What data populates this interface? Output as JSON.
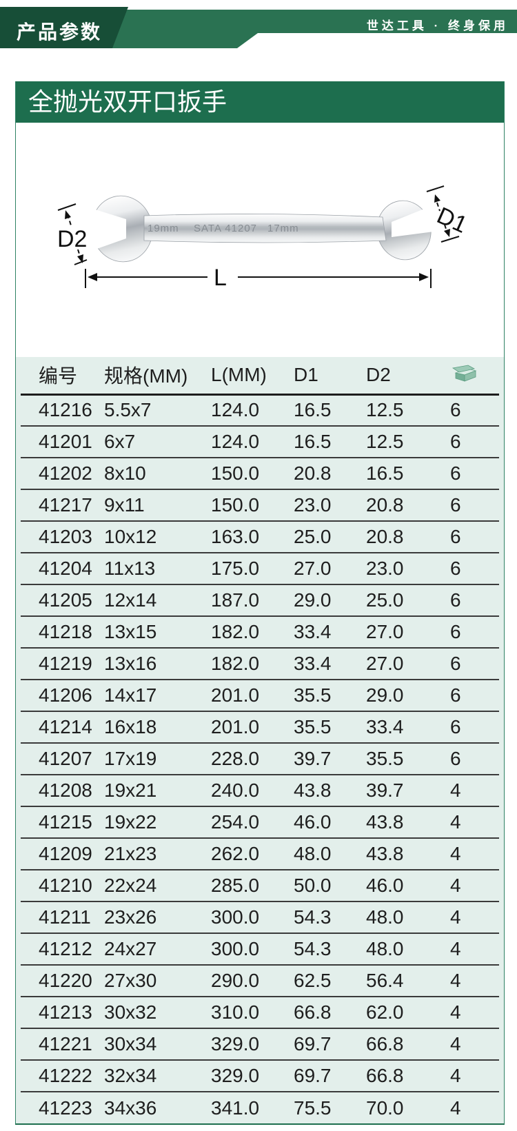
{
  "banner": {
    "tag": "产品参数",
    "slogan": "世达工具 · 终身保用"
  },
  "product": {
    "title": "全抛光双开口扳手"
  },
  "diagram": {
    "labels": {
      "d1": "D1",
      "d2": "D2",
      "length": "L"
    },
    "markings": {
      "left": "19mm",
      "brand": "SATA 41207",
      "right": "17mm"
    }
  },
  "table": {
    "headers": [
      "编号",
      "规格(MM)",
      "L(MM)",
      "D1",
      "D2"
    ],
    "qty_icon": "package-box-icon",
    "rows": [
      [
        "41216",
        "5.5x7",
        "124.0",
        "16.5",
        "12.5",
        "6"
      ],
      [
        "41201",
        "6x7",
        "124.0",
        "16.5",
        "12.5",
        "6"
      ],
      [
        "41202",
        "8x10",
        "150.0",
        "20.8",
        "16.5",
        "6"
      ],
      [
        "41217",
        "9x11",
        "150.0",
        "23.0",
        "20.8",
        "6"
      ],
      [
        "41203",
        "10x12",
        "163.0",
        "25.0",
        "20.8",
        "6"
      ],
      [
        "41204",
        "11x13",
        "175.0",
        "27.0",
        "23.0",
        "6"
      ],
      [
        "41205",
        "12x14",
        "187.0",
        "29.0",
        "25.0",
        "6"
      ],
      [
        "41218",
        "13x15",
        "182.0",
        "33.4",
        "27.0",
        "6"
      ],
      [
        "41219",
        "13x16",
        "182.0",
        "33.4",
        "27.0",
        "6"
      ],
      [
        "41206",
        "14x17",
        "201.0",
        "35.5",
        "29.0",
        "6"
      ],
      [
        "41214",
        "16x18",
        "201.0",
        "35.5",
        "33.4",
        "6"
      ],
      [
        "41207",
        "17x19",
        "228.0",
        "39.7",
        "35.5",
        "6"
      ],
      [
        "41208",
        "19x21",
        "240.0",
        "43.8",
        "39.7",
        "4"
      ],
      [
        "41215",
        "19x22",
        "254.0",
        "46.0",
        "43.8",
        "4"
      ],
      [
        "41209",
        "21x23",
        "262.0",
        "48.0",
        "43.8",
        "4"
      ],
      [
        "41210",
        "22x24",
        "285.0",
        "50.0",
        "46.0",
        "4"
      ],
      [
        "41211",
        "23x26",
        "300.0",
        "54.3",
        "48.0",
        "4"
      ],
      [
        "41212",
        "24x27",
        "300.0",
        "54.3",
        "48.0",
        "4"
      ],
      [
        "41220",
        "27x30",
        "290.0",
        "62.5",
        "56.4",
        "4"
      ],
      [
        "41213",
        "30x32",
        "310.0",
        "66.8",
        "62.0",
        "4"
      ],
      [
        "41221",
        "30x34",
        "329.0",
        "69.7",
        "66.8",
        "4"
      ],
      [
        "41222",
        "32x34",
        "329.0",
        "69.7",
        "66.8",
        "4"
      ],
      [
        "41223",
        "34x36",
        "341.0",
        "75.5",
        "70.0",
        "4"
      ]
    ]
  },
  "colors": {
    "dark_green": "#174e37",
    "mid_green": "#2a7252",
    "title_green": "#1d6e4e",
    "table_bg": "#e3efeb",
    "border_green": "#2e8163",
    "text": "#1e1e1e"
  }
}
